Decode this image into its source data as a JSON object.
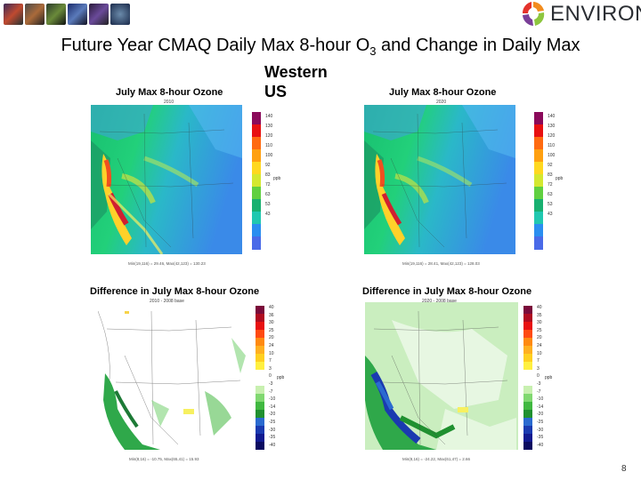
{
  "header": {
    "logo_text": "ENVIRON",
    "title_main": "Future Year CMAQ Daily Max 8-hour O",
    "title_sub": "3",
    "title_tail": " and Change in Daily Max",
    "subtitle_line1": "Western",
    "subtitle_line2": "US"
  },
  "panels": {
    "top_left": {
      "title": "July Max 8-hour Ozone",
      "year": "2010",
      "stats": "Min(19,116) = 29.46, Max(42,123) = 130.23",
      "scale": [
        "140",
        "130",
        "120",
        "110",
        "100",
        "92",
        "83",
        "72",
        "63",
        "53",
        "43"
      ],
      "unit": "ppb"
    },
    "top_right": {
      "title": "July Max 8-hour Ozone",
      "year": "2020",
      "stats": "Min(19,116) = 28.41, Max(42,123) = 128.03",
      "scale": [
        "140",
        "130",
        "120",
        "110",
        "100",
        "92",
        "83",
        "72",
        "63",
        "53",
        "43"
      ],
      "unit": "ppb"
    },
    "bottom_left": {
      "title": "Difference in July Max 8-hour Ozone",
      "year": "2010 - 2008 base",
      "stats": "Min(8,16) = -10.75, Max(65,41) = 15.93",
      "scale": [
        "40",
        "36",
        "30",
        "25",
        "20",
        "24",
        "10",
        "7",
        "3",
        "0",
        "-3",
        "-7",
        "-10",
        "-14",
        "-20",
        "-25",
        "-30",
        "-35",
        "-40"
      ],
      "unit": "ppb"
    },
    "bottom_right": {
      "title": "Difference in July Max 8-hour Ozone",
      "year": "2020 - 2008 base",
      "stats": "Min(8,16) = -24.22, Max(61,47) = 2.66",
      "scale": [
        "40",
        "35",
        "30",
        "25",
        "20",
        "24",
        "10",
        "7",
        "3",
        "0",
        "-3",
        "-7",
        "-10",
        "-14",
        "-20",
        "-25",
        "-30",
        "-35",
        "-40"
      ],
      "unit": "ppb"
    }
  },
  "footer": {
    "page": "8"
  },
  "colors": {
    "title_text": "#000000",
    "logo_orange": "#f28c1e",
    "logo_purple": "#7a3f98"
  }
}
